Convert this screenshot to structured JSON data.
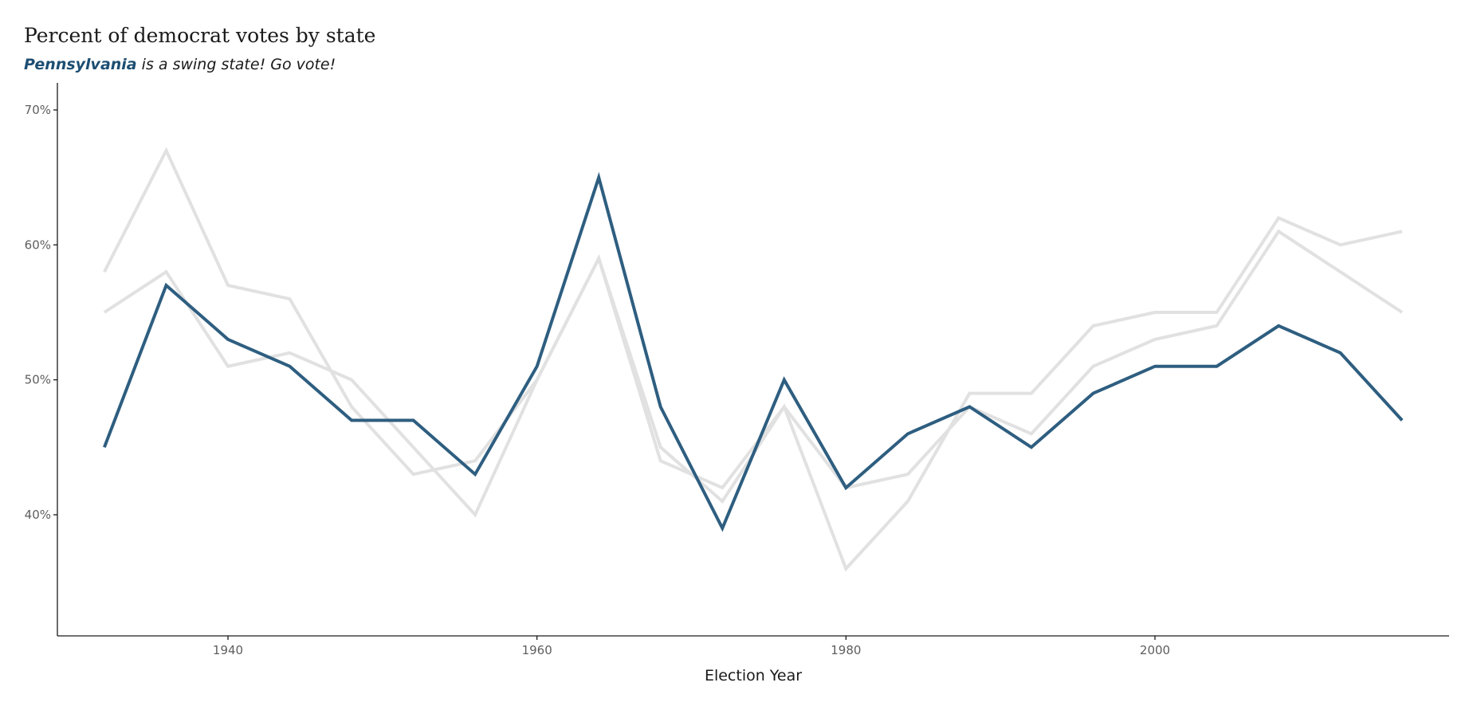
{
  "header": {
    "title": "Percent of democrat votes by state",
    "subtitle_highlight": "Pennsylvania",
    "subtitle_rest": " is a swing state! Go vote!"
  },
  "colors": {
    "highlight": "#2e5e80",
    "subtitle_highlight": "#1d4e72",
    "background_series": "#e1e1e1",
    "axis": "#1a1a1a",
    "tick_text": "#5e5e5e"
  },
  "chart_data": {
    "type": "line",
    "title": "Percent of democrat votes by state",
    "subtitle": "Pennsylvania is a swing state! Go vote!",
    "xlabel": "Election Year",
    "ylabel": "",
    "x": [
      1932,
      1936,
      1940,
      1944,
      1948,
      1952,
      1956,
      1960,
      1964,
      1968,
      1972,
      1976,
      1980,
      1984,
      1988,
      1992,
      1996,
      2000,
      2004,
      2008,
      2012,
      2016
    ],
    "xlim": [
      1921,
      2011
    ],
    "ylim": [
      31,
      72
    ],
    "x_ticks": [
      1940,
      1960,
      1980,
      2000
    ],
    "x_tick_labels": [
      "1940",
      "1960",
      "1980",
      "2000"
    ],
    "y_ticks": [
      40,
      50,
      60,
      70
    ],
    "y_tick_labels": [
      "40%",
      "50%",
      "60%",
      "70%"
    ],
    "grid": false,
    "legend": "none",
    "series": [
      {
        "highlight": false,
        "values": [
          58,
          67,
          57,
          56,
          48,
          43,
          44,
          50,
          59,
          44,
          42,
          48,
          36,
          41,
          49,
          49,
          54,
          55,
          55,
          62,
          60,
          61
        ]
      },
      {
        "highlight": false,
        "values": [
          55,
          58,
          51,
          52,
          50,
          45,
          40,
          50,
          59,
          45,
          41,
          48,
          42,
          43,
          48,
          46,
          51,
          53,
          54,
          61,
          58,
          55
        ]
      },
      {
        "name": "Pennsylvania",
        "highlight": true,
        "values": [
          45,
          57,
          53,
          51,
          47,
          47,
          43,
          51,
          65,
          48,
          39,
          50,
          42,
          46,
          48,
          45,
          49,
          51,
          51,
          54,
          52,
          47
        ]
      }
    ]
  }
}
